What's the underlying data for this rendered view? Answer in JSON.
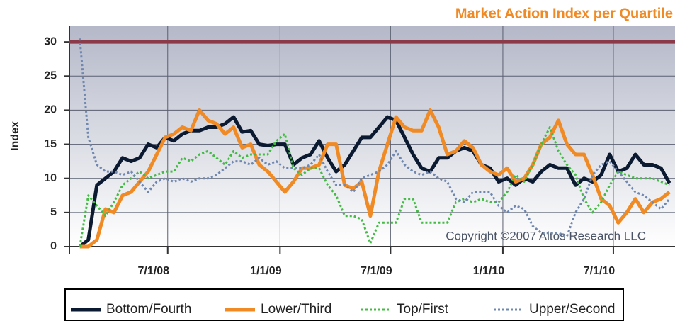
{
  "chart_data": {
    "type": "line",
    "title": "Market Action Index per Quartile",
    "ylabel": "Index",
    "annotation": "Copyright ©2007 Altos Research LLC",
    "x": [
      "2008-02-08",
      "2008-02-22",
      "2008-03-07",
      "2008-03-21",
      "2008-04-04",
      "2008-04-18",
      "2008-05-02",
      "2008-05-16",
      "2008-05-30",
      "2008-06-13",
      "2008-06-27",
      "2008-07-11",
      "2008-07-25",
      "2008-08-08",
      "2008-08-22",
      "2008-09-05",
      "2008-09-19",
      "2008-10-03",
      "2008-10-17",
      "2008-10-31",
      "2008-11-14",
      "2008-11-28",
      "2008-12-12",
      "2008-12-26",
      "2009-01-09",
      "2009-01-23",
      "2009-02-06",
      "2009-02-20",
      "2009-03-06",
      "2009-03-20",
      "2009-04-03",
      "2009-04-17",
      "2009-05-01",
      "2009-05-15",
      "2009-05-29",
      "2009-06-12",
      "2009-06-26",
      "2009-07-10",
      "2009-07-24",
      "2009-08-07",
      "2009-08-21",
      "2009-09-04",
      "2009-09-18",
      "2009-10-02",
      "2009-10-16",
      "2009-10-30",
      "2009-11-13",
      "2009-11-27",
      "2009-12-11",
      "2009-12-25",
      "2010-01-08",
      "2010-01-22",
      "2010-02-05",
      "2010-02-19",
      "2010-03-05",
      "2010-03-19",
      "2010-04-02",
      "2010-04-16",
      "2010-04-30",
      "2010-05-14",
      "2010-05-28",
      "2010-06-11",
      "2010-06-25",
      "2010-07-09",
      "2010-07-23",
      "2010-08-06",
      "2010-08-20",
      "2010-09-03",
      "2010-09-17",
      "2010-10-01"
    ],
    "series": [
      {
        "name": "Bottom/Fourth",
        "color": "#0b1a30",
        "style": "solid",
        "values": [
          0,
          1,
          9,
          10,
          11,
          13,
          12.5,
          13,
          15,
          14.5,
          16,
          15.5,
          16.5,
          17,
          17,
          17.5,
          17.5,
          18,
          19,
          16.8,
          17,
          15,
          14.8,
          15,
          15,
          12,
          13,
          13.5,
          15.5,
          13,
          11,
          12,
          14,
          16,
          16,
          17.5,
          19,
          18.5,
          16,
          13.5,
          11.5,
          11,
          13,
          13,
          14,
          14.5,
          14,
          12,
          11.5,
          9.5,
          10,
          9,
          10,
          9.5,
          11,
          12,
          11.5,
          11.5,
          9,
          10,
          9.5,
          10.5,
          13.5,
          11,
          11.5,
          13.5,
          12,
          12,
          11.5,
          9.3
        ]
      },
      {
        "name": "Lower/Third",
        "color": "#f08a24",
        "style": "solid",
        "values": [
          0,
          0,
          1,
          5.5,
          5,
          7.5,
          8,
          9.5,
          11,
          13.5,
          16,
          16.5,
          17.5,
          17,
          20,
          18.5,
          18,
          16.5,
          17.5,
          14.5,
          15,
          12,
          11,
          9.5,
          8,
          9.5,
          11.5,
          11.5,
          12,
          15,
          15,
          9,
          8.5,
          9.5,
          4.5,
          11,
          15,
          19,
          17.5,
          17,
          17,
          20,
          17.5,
          13.5,
          14,
          15.5,
          14.5,
          12,
          11,
          10.5,
          11.5,
          9.5,
          10,
          12,
          15,
          16,
          18.5,
          15,
          13.5,
          13.5,
          10.5,
          7,
          6,
          3.5,
          5,
          7,
          5,
          6.5,
          7,
          8
        ]
      },
      {
        "name": "Top/First",
        "color": "#44bb44",
        "style": "dotted",
        "values": [
          0,
          7.5,
          6,
          4.5,
          6.5,
          9,
          10,
          11,
          10,
          10.5,
          11,
          11,
          13,
          12.5,
          13.5,
          14,
          13,
          12,
          14,
          13,
          13.5,
          13.5,
          13.5,
          15.5,
          16.5,
          11.5,
          10.5,
          11.5,
          11.5,
          9,
          7.5,
          4.5,
          4.5,
          4,
          0.5,
          3.5,
          3.5,
          3.5,
          7,
          7,
          3.5,
          3.5,
          3.5,
          3.5,
          6.5,
          7,
          6.5,
          7,
          6.5,
          6.5,
          8,
          10.5,
          9.5,
          12,
          15,
          17.5,
          14,
          12,
          10.5,
          7,
          5,
          6.5,
          9,
          11,
          10.5,
          10,
          10,
          10,
          9.5,
          9
        ]
      },
      {
        "name": "Upper/Second",
        "color": "#7088b0",
        "style": "dotted",
        "values": [
          30.5,
          16,
          12,
          11,
          11,
          10.5,
          11,
          9.5,
          8,
          9.5,
          10,
          9.5,
          10,
          9.5,
          10,
          10,
          10.5,
          11.5,
          12.5,
          12.5,
          12,
          13,
          12,
          12.5,
          11.5,
          11.5,
          11.5,
          12,
          13.5,
          11,
          9,
          9,
          8,
          10,
          10.5,
          11,
          12,
          14,
          12,
          11,
          10.5,
          11,
          10,
          9.5,
          7,
          6.5,
          8,
          8,
          8,
          6,
          5,
          6,
          5.5,
          3,
          2,
          2,
          2,
          1.5,
          5,
          7,
          10.5,
          12,
          12.5,
          11,
          9.5,
          8,
          7.5,
          6.5,
          5.5,
          7
        ]
      }
    ],
    "reference_line": {
      "value": 30,
      "color": "#8b3a4a"
    },
    "xlim": [
      "2008-01-22",
      "2010-10-10"
    ],
    "xticks": [
      {
        "value": "2008-07-01",
        "label": "7/1/08"
      },
      {
        "value": "2009-01-01",
        "label": "1/1/09"
      },
      {
        "value": "2009-07-01",
        "label": "7/1/09"
      },
      {
        "value": "2010-01-01",
        "label": "1/1/10"
      },
      {
        "value": "2010-07-01",
        "label": "7/1/10"
      }
    ],
    "ylim": [
      0,
      32.3
    ],
    "yticks": [
      0,
      5,
      10,
      15,
      20,
      25,
      30
    ],
    "grid": true,
    "legend": "bottom"
  }
}
